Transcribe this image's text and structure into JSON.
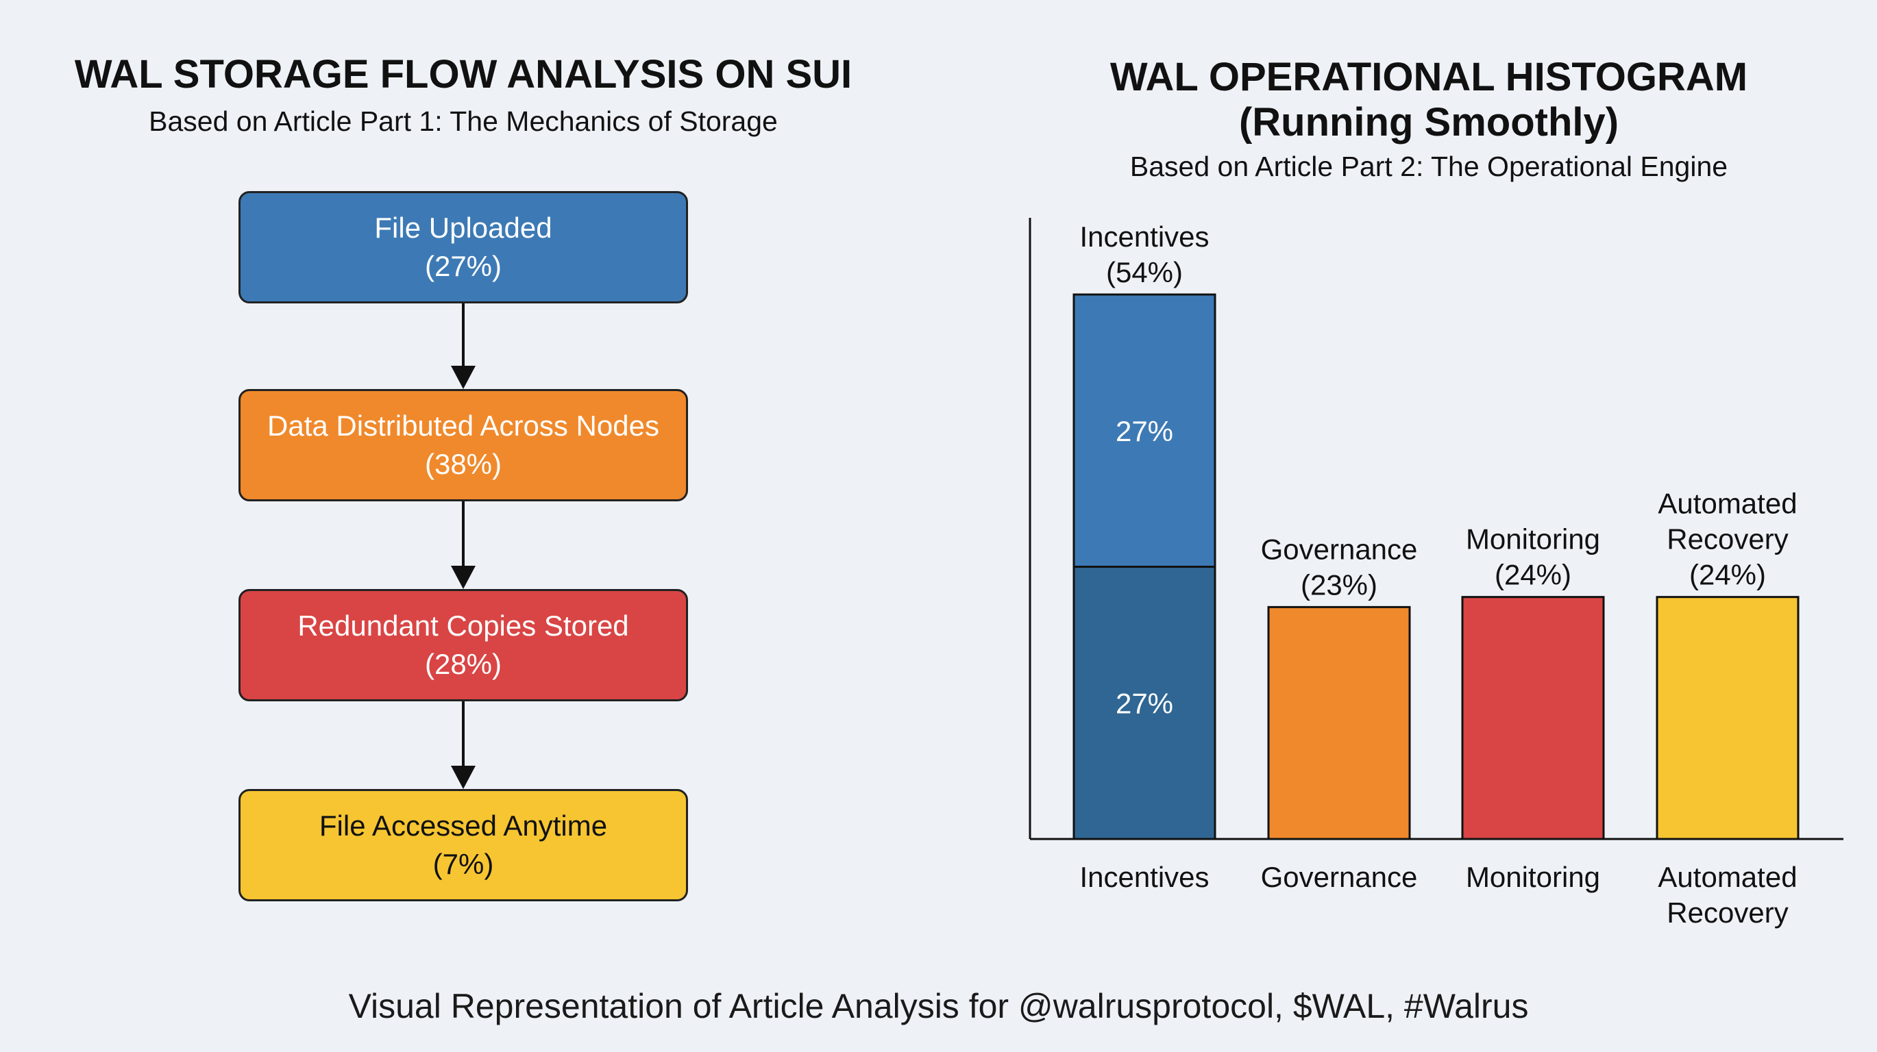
{
  "left_panel": {
    "title": "WAL STORAGE FLOW ANALYSIS ON SUI",
    "subtitle": "Based on Article Part 1: The Mechanics of Storage",
    "steps": [
      {
        "label": "File Uploaded",
        "value": "(27%)",
        "color": "#3d7ab5"
      },
      {
        "label": "Data Distributed Across Nodes",
        "value": "(38%)",
        "color": "#f0892b"
      },
      {
        "label": "Redundant Copies Stored",
        "value": "(28%)",
        "color": "#d94545"
      },
      {
        "label": "File Accessed Anytime",
        "value": "(7%)",
        "color": "#f6c531"
      }
    ]
  },
  "right_panel": {
    "title_line1": "WAL OPERATIONAL HISTOGRAM",
    "title_line2": "(Running Smoothly)",
    "subtitle": "Based on Article Part 2: The Operational Engine"
  },
  "chart_data": {
    "type": "bar",
    "categories": [
      "Incentives",
      "Governance",
      "Monitoring",
      "Automated Recovery"
    ],
    "values": [
      54,
      23,
      24,
      24
    ],
    "top_labels": [
      [
        "Incentives",
        "(54%)"
      ],
      [
        "Governance",
        "(23%)"
      ],
      [
        "Monitoring",
        "(24%)"
      ],
      [
        "Automated",
        "Recovery",
        "(24%)"
      ]
    ],
    "tick_labels": [
      [
        "Incentives"
      ],
      [
        "Governance"
      ],
      [
        "Monitoring"
      ],
      [
        "Automated",
        "Recovery"
      ]
    ],
    "stacked_segments": [
      {
        "category": "Incentives",
        "segments": [
          {
            "value": 27,
            "label": "27%",
            "color": "#2f6693"
          },
          {
            "value": 27,
            "label": "27%",
            "color": "#3d7ab5"
          }
        ]
      }
    ],
    "colors": [
      "#3d7ab5",
      "#f0892b",
      "#d94545",
      "#f6c531"
    ],
    "ylim": [
      0,
      60
    ],
    "xlabel": "",
    "ylabel": "",
    "grid": false
  },
  "footer": "Visual Representation of Article Analysis for @walrusprotocol, $WAL, #Walrus"
}
